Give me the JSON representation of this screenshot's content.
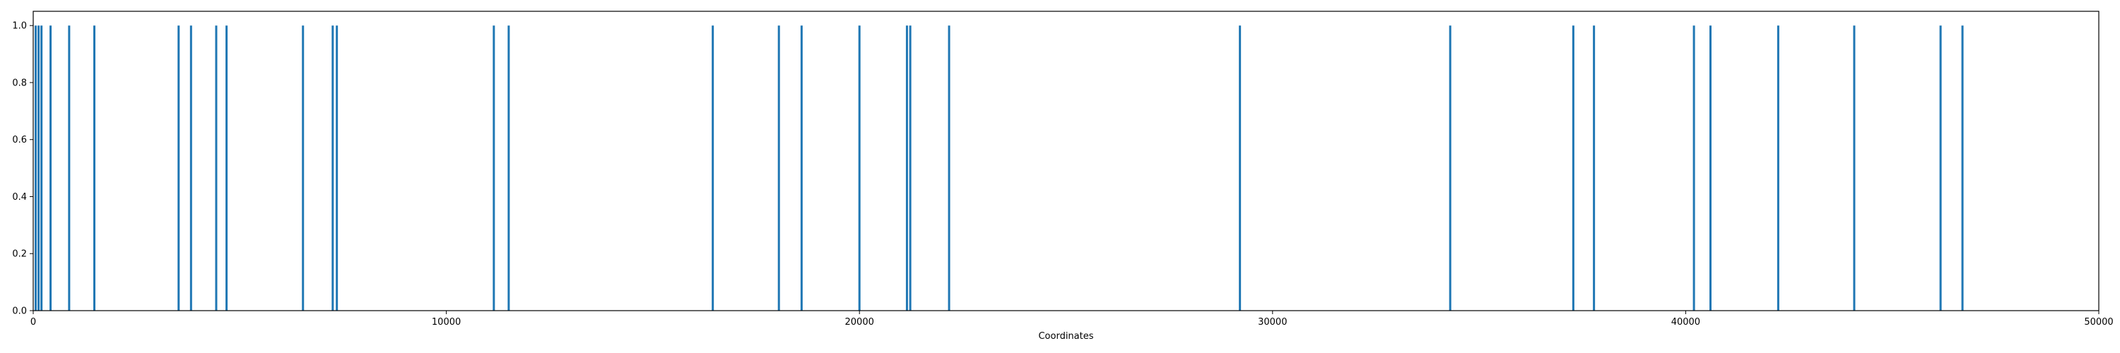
{
  "chart_data": {
    "type": "bar",
    "xlabel": "Coordinates",
    "ylabel": "",
    "xlim": [
      0,
      50000
    ],
    "ylim": [
      0,
      1.05
    ],
    "x_ticks": [
      0,
      10000,
      20000,
      30000,
      40000,
      50000
    ],
    "y_ticks": [
      0.0,
      0.2,
      0.4,
      0.6,
      0.8,
      1.0
    ],
    "x_tick_labels": [
      "0",
      "10000",
      "20000",
      "30000",
      "40000",
      "50000"
    ],
    "y_tick_labels": [
      "0.0",
      "0.2",
      "0.4",
      "0.6",
      "0.8",
      "1.0"
    ],
    "grid": false,
    "bar_color": "#1f77b4",
    "series": [
      {
        "x": [
          60,
          130,
          200,
          420,
          870,
          1480,
          3520,
          3820,
          4430,
          4680,
          6530,
          7250,
          7350,
          11150,
          11510,
          16450,
          18050,
          18600,
          20000,
          21150,
          21230,
          22170,
          29210,
          34300,
          37280,
          37780,
          40200,
          40600,
          42240,
          44080,
          46170,
          46700
        ],
        "values": [
          1,
          1,
          1,
          1,
          1,
          1,
          1,
          1,
          1,
          1,
          1,
          1,
          1,
          1,
          1,
          1,
          1,
          1,
          1,
          1,
          1,
          1,
          1,
          1,
          1,
          1,
          1,
          1,
          1,
          1,
          1,
          1
        ]
      }
    ]
  }
}
